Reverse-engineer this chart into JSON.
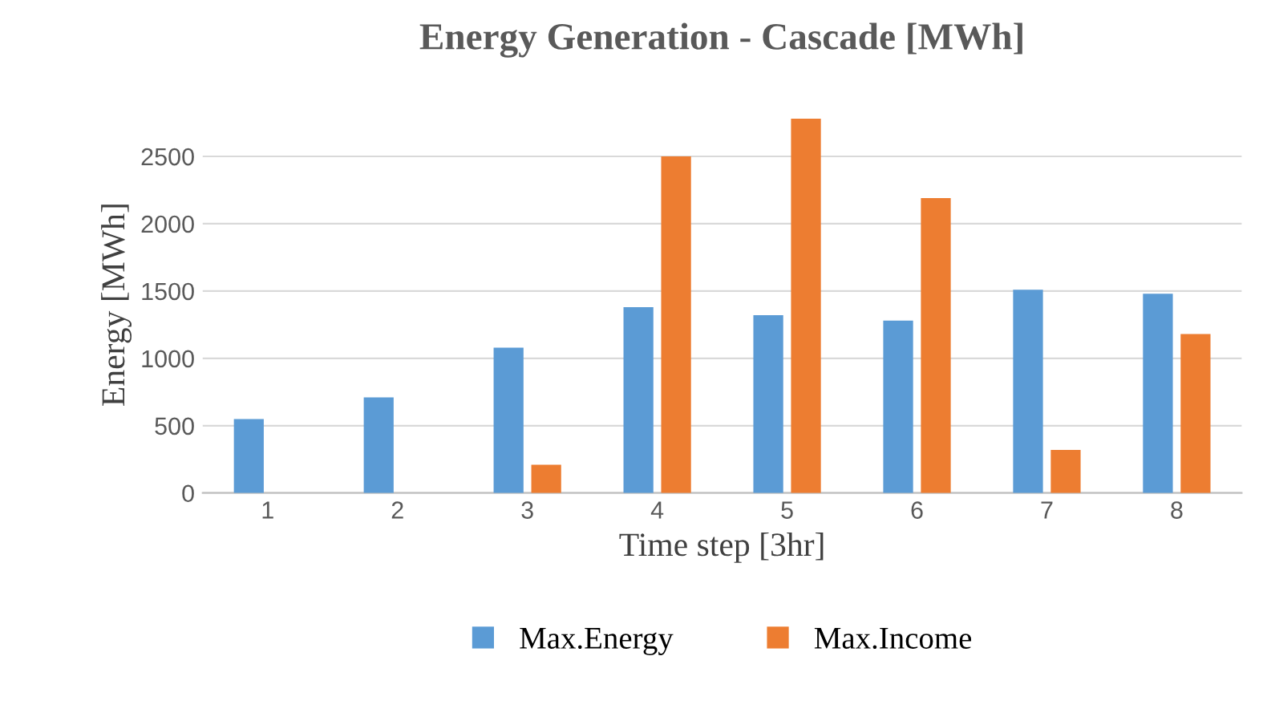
{
  "chart_data": {
    "type": "bar",
    "title": "Energy Generation - Cascade [MWh]",
    "xlabel": "Time step [3hr]",
    "ylabel": "Energy [MWh]",
    "categories": [
      "1",
      "2",
      "3",
      "4",
      "5",
      "6",
      "7",
      "8"
    ],
    "series": [
      {
        "name": "Max.Energy",
        "color": "#5b9bd5",
        "values": [
          550,
          710,
          1080,
          1380,
          1320,
          1280,
          1510,
          1480
        ]
      },
      {
        "name": "Max.Income",
        "color": "#ed7d31",
        "values": [
          0,
          0,
          210,
          2500,
          2780,
          2190,
          320,
          1180
        ]
      }
    ],
    "ylim": [
      0,
      2800
    ],
    "yticks": [
      0,
      500,
      1000,
      1500,
      2000,
      2500
    ],
    "grid": "y",
    "legend": "bottom"
  }
}
